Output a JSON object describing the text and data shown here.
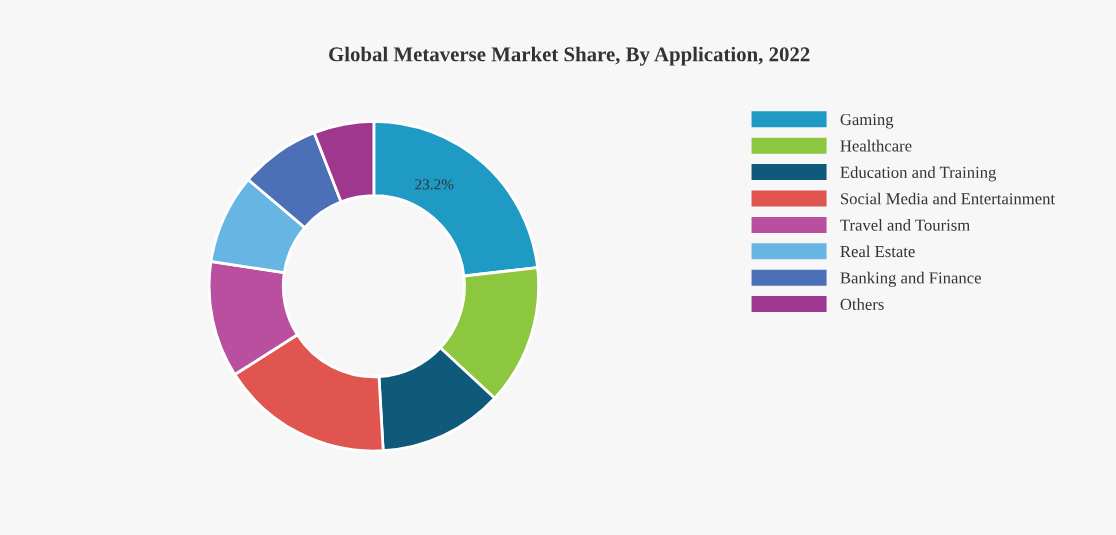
{
  "chart_data": {
    "type": "donut",
    "title": "Global Metaverse Market Share, By Application, 2022",
    "categories": [
      "Gaming",
      "Healthcare",
      "Education and Training",
      "Social Media and Entertainment",
      "Travel and Tourism",
      "Real Estate",
      "Banking and Finance",
      "Others"
    ],
    "values": [
      23.2,
      13.7,
      12.2,
      16.9,
      11.4,
      8.8,
      7.9,
      5.9
    ],
    "colors": [
      "#1f9ac4",
      "#8dc63f",
      "#0f5a7a",
      "#e05550",
      "#b94f9e",
      "#66b5e3",
      "#4c70b8",
      "#a0378f"
    ],
    "value_labels": [
      "23.2%",
      null,
      null,
      null,
      null,
      null,
      null,
      null
    ],
    "legend": "right"
  }
}
